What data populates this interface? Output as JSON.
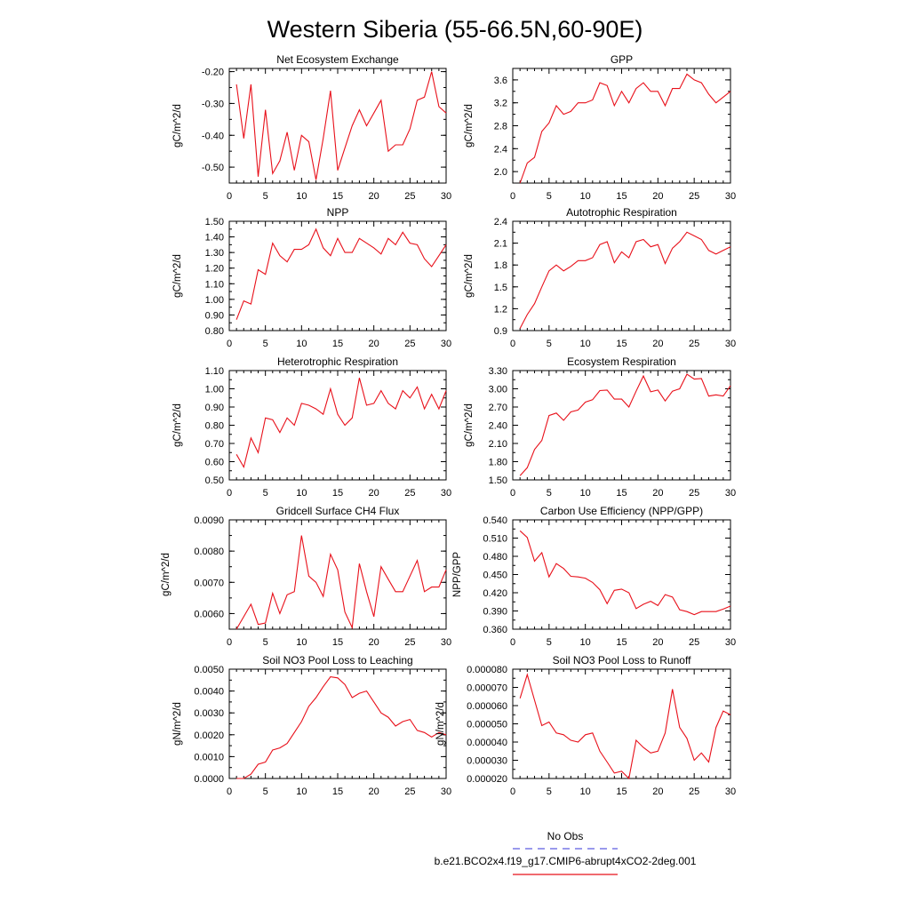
{
  "figure": {
    "title": "Western Siberia (55-66.5N,60-90E)",
    "line_color": "#e8101a",
    "obs_color": "#5c5ce0",
    "legend": {
      "obs_label": "No Obs",
      "model_label": "b.e21.BCO2x4.f19_g17.CMIP6-abrupt4xCO2-2deg.001"
    }
  },
  "chart_data": [
    {
      "type": "line",
      "title": "Net Ecosystem Exchange",
      "ylabel": "gC/m^2/d",
      "xlim": [
        0,
        30
      ],
      "ylim": [
        -0.55,
        -0.19
      ],
      "xticks": [
        0,
        5,
        10,
        15,
        20,
        25,
        30
      ],
      "yticks": [
        -0.5,
        -0.4,
        -0.3,
        -0.2
      ],
      "ytick_labels": [
        "-0.50",
        "-0.40",
        "-0.30",
        "-0.20"
      ],
      "x": [
        1,
        2,
        3,
        4,
        5,
        6,
        7,
        8,
        9,
        10,
        11,
        12,
        13,
        14,
        15,
        16,
        17,
        18,
        19,
        20,
        21,
        22,
        23,
        24,
        25,
        26,
        27,
        28,
        29,
        30
      ],
      "y": [
        -0.24,
        -0.41,
        -0.24,
        -0.53,
        -0.32,
        -0.52,
        -0.48,
        -0.39,
        -0.51,
        -0.4,
        -0.42,
        -0.54,
        -0.41,
        -0.26,
        -0.51,
        -0.44,
        -0.37,
        -0.32,
        -0.37,
        -0.33,
        -0.29,
        -0.45,
        -0.43,
        -0.43,
        -0.38,
        -0.29,
        -0.28,
        -0.2,
        -0.31,
        -0.33
      ]
    },
    {
      "type": "line",
      "title": "GPP",
      "ylabel": "gC/m^2/d",
      "xlim": [
        0,
        30
      ],
      "ylim": [
        1.8,
        3.8
      ],
      "xticks": [
        0,
        5,
        10,
        15,
        20,
        25,
        30
      ],
      "yticks": [
        2.0,
        2.4,
        2.8,
        3.2,
        3.6
      ],
      "ytick_labels": [
        "2.0",
        "2.4",
        "2.8",
        "3.2",
        "3.6"
      ],
      "x": [
        1,
        2,
        3,
        4,
        5,
        6,
        7,
        8,
        9,
        10,
        11,
        12,
        13,
        14,
        15,
        16,
        17,
        18,
        19,
        20,
        21,
        22,
        23,
        24,
        25,
        26,
        27,
        28,
        29,
        30
      ],
      "y": [
        1.8,
        2.15,
        2.25,
        2.7,
        2.85,
        3.15,
        3.0,
        3.05,
        3.2,
        3.2,
        3.25,
        3.55,
        3.5,
        3.15,
        3.4,
        3.2,
        3.45,
        3.55,
        3.4,
        3.4,
        3.15,
        3.45,
        3.45,
        3.7,
        3.6,
        3.55,
        3.35,
        3.2,
        3.3,
        3.4
      ]
    },
    {
      "type": "line",
      "title": "NPP",
      "ylabel": "gC/m^2/d",
      "xlim": [
        0,
        30
      ],
      "ylim": [
        0.8,
        1.5
      ],
      "xticks": [
        0,
        5,
        10,
        15,
        20,
        25,
        30
      ],
      "yticks": [
        0.8,
        0.9,
        1.0,
        1.1,
        1.2,
        1.3,
        1.4,
        1.5
      ],
      "ytick_labels": [
        "0.80",
        "0.90",
        "1.00",
        "1.10",
        "1.20",
        "1.30",
        "1.40",
        "1.50"
      ],
      "x": [
        1,
        2,
        3,
        4,
        5,
        6,
        7,
        8,
        9,
        10,
        11,
        12,
        13,
        14,
        15,
        16,
        17,
        18,
        19,
        20,
        21,
        22,
        23,
        24,
        25,
        26,
        27,
        28,
        29,
        30
      ],
      "y": [
        0.87,
        0.99,
        0.97,
        1.19,
        1.16,
        1.36,
        1.28,
        1.24,
        1.32,
        1.32,
        1.35,
        1.45,
        1.33,
        1.28,
        1.39,
        1.3,
        1.3,
        1.39,
        1.36,
        1.33,
        1.29,
        1.39,
        1.35,
        1.43,
        1.36,
        1.35,
        1.26,
        1.21,
        1.28,
        1.35
      ]
    },
    {
      "type": "line",
      "title": "Autotrophic Respiration",
      "ylabel": "gC/m^2/d",
      "xlim": [
        0,
        30
      ],
      "ylim": [
        0.9,
        2.4
      ],
      "xticks": [
        0,
        5,
        10,
        15,
        20,
        25,
        30
      ],
      "yticks": [
        0.9,
        1.2,
        1.5,
        1.8,
        2.1,
        2.4
      ],
      "ytick_labels": [
        "0.9",
        "1.2",
        "1.5",
        "1.8",
        "2.1",
        "2.4"
      ],
      "x": [
        1,
        2,
        3,
        4,
        5,
        6,
        7,
        8,
        9,
        10,
        11,
        12,
        13,
        14,
        15,
        16,
        17,
        18,
        19,
        20,
        21,
        22,
        23,
        24,
        25,
        26,
        27,
        28,
        29,
        30
      ],
      "y": [
        0.93,
        1.12,
        1.27,
        1.5,
        1.72,
        1.8,
        1.72,
        1.78,
        1.86,
        1.86,
        1.9,
        2.08,
        2.12,
        1.83,
        1.98,
        1.9,
        2.12,
        2.15,
        2.05,
        2.08,
        1.82,
        2.03,
        2.12,
        2.25,
        2.2,
        2.15,
        2.0,
        1.95,
        2.0,
        2.05
      ]
    },
    {
      "type": "line",
      "title": "Heterotrophic Respiration",
      "ylabel": "gC/m^2/d",
      "xlim": [
        0,
        30
      ],
      "ylim": [
        0.5,
        1.1
      ],
      "xticks": [
        0,
        5,
        10,
        15,
        20,
        25,
        30
      ],
      "yticks": [
        0.5,
        0.6,
        0.7,
        0.8,
        0.9,
        1.0,
        1.1
      ],
      "ytick_labels": [
        "0.50",
        "0.60",
        "0.70",
        "0.80",
        "0.90",
        "1.00",
        "1.10"
      ],
      "x": [
        1,
        2,
        3,
        4,
        5,
        6,
        7,
        8,
        9,
        10,
        11,
        12,
        13,
        14,
        15,
        16,
        17,
        18,
        19,
        20,
        21,
        22,
        23,
        24,
        25,
        26,
        27,
        28,
        29,
        30
      ],
      "y": [
        0.64,
        0.57,
        0.73,
        0.65,
        0.84,
        0.83,
        0.76,
        0.84,
        0.8,
        0.92,
        0.91,
        0.89,
        0.86,
        1.0,
        0.86,
        0.8,
        0.84,
        1.06,
        0.91,
        0.92,
        0.99,
        0.92,
        0.89,
        0.99,
        0.95,
        1.01,
        0.89,
        0.97,
        0.89,
        0.99
      ]
    },
    {
      "type": "line",
      "title": "Ecosystem Respiration",
      "ylabel": "gC/m^2/d",
      "xlim": [
        0,
        30
      ],
      "ylim": [
        1.5,
        3.3
      ],
      "xticks": [
        0,
        5,
        10,
        15,
        20,
        25,
        30
      ],
      "yticks": [
        1.5,
        1.8,
        2.1,
        2.4,
        2.7,
        3.0,
        3.3
      ],
      "ytick_labels": [
        "1.50",
        "1.80",
        "2.10",
        "2.40",
        "2.70",
        "3.00",
        "3.30"
      ],
      "x": [
        1,
        2,
        3,
        4,
        5,
        6,
        7,
        8,
        9,
        10,
        11,
        12,
        13,
        14,
        15,
        16,
        17,
        18,
        19,
        20,
        21,
        22,
        23,
        24,
        25,
        26,
        27,
        28,
        29,
        30
      ],
      "y": [
        1.57,
        1.7,
        2.0,
        2.15,
        2.56,
        2.6,
        2.48,
        2.62,
        2.65,
        2.78,
        2.82,
        2.97,
        2.98,
        2.83,
        2.83,
        2.7,
        2.96,
        3.21,
        2.95,
        2.98,
        2.8,
        2.96,
        3.0,
        3.24,
        3.16,
        3.17,
        2.88,
        2.9,
        2.88,
        3.05
      ]
    },
    {
      "type": "line",
      "title": "Gridcell Surface CH4 Flux",
      "ylabel": "gC/m^2/d",
      "xlim": [
        0,
        30
      ],
      "ylim": [
        0.0055,
        0.009
      ],
      "xticks": [
        0,
        5,
        10,
        15,
        20,
        25,
        30
      ],
      "yticks": [
        0.006,
        0.007,
        0.008,
        0.009
      ],
      "ytick_labels": [
        "0.0060",
        "0.0070",
        "0.0080",
        "0.0090"
      ],
      "x": [
        1,
        2,
        3,
        4,
        5,
        6,
        7,
        8,
        9,
        10,
        11,
        12,
        13,
        14,
        15,
        16,
        17,
        18,
        19,
        20,
        21,
        22,
        23,
        24,
        25,
        26,
        27,
        28,
        29,
        30
      ],
      "y": [
        0.0055,
        0.0059,
        0.0063,
        0.00565,
        0.0057,
        0.00665,
        0.006,
        0.0066,
        0.0067,
        0.0085,
        0.0072,
        0.007,
        0.00655,
        0.0079,
        0.0074,
        0.00605,
        0.00555,
        0.0076,
        0.0067,
        0.0059,
        0.0075,
        0.0071,
        0.0067,
        0.0067,
        0.0072,
        0.0077,
        0.0067,
        0.00685,
        0.00685,
        0.0074
      ]
    },
    {
      "type": "line",
      "title": "Carbon Use Efficiency (NPP/GPP)",
      "ylabel": "NPP/GPP",
      "xlim": [
        0,
        30
      ],
      "ylim": [
        0.36,
        0.54
      ],
      "xticks": [
        0,
        5,
        10,
        15,
        20,
        25,
        30
      ],
      "yticks": [
        0.36,
        0.39,
        0.42,
        0.45,
        0.48,
        0.51,
        0.54
      ],
      "ytick_labels": [
        "0.360",
        "0.390",
        "0.420",
        "0.450",
        "0.480",
        "0.510",
        "0.540"
      ],
      "x": [
        1,
        2,
        3,
        4,
        5,
        6,
        7,
        8,
        9,
        10,
        11,
        12,
        13,
        14,
        15,
        16,
        17,
        18,
        19,
        20,
        21,
        22,
        23,
        24,
        25,
        26,
        27,
        28,
        29,
        30
      ],
      "y": [
        0.522,
        0.511,
        0.472,
        0.486,
        0.446,
        0.468,
        0.46,
        0.447,
        0.446,
        0.444,
        0.437,
        0.425,
        0.402,
        0.424,
        0.426,
        0.42,
        0.394,
        0.401,
        0.406,
        0.399,
        0.417,
        0.413,
        0.392,
        0.389,
        0.384,
        0.389,
        0.389,
        0.389,
        0.393,
        0.398
      ]
    },
    {
      "type": "line",
      "title": "Soil NO3 Pool Loss to Leaching",
      "ylabel": "gN/m^2/d",
      "xlim": [
        0,
        30
      ],
      "ylim": [
        0,
        0.005
      ],
      "xticks": [
        0,
        5,
        10,
        15,
        20,
        25,
        30
      ],
      "yticks": [
        0,
        0.001,
        0.002,
        0.003,
        0.004,
        0.005
      ],
      "ytick_labels": [
        "0.0000",
        "0.0010",
        "0.0020",
        "0.0030",
        "0.0040",
        "0.0050"
      ],
      "x": [
        1,
        2,
        3,
        4,
        5,
        6,
        7,
        8,
        9,
        10,
        11,
        12,
        13,
        14,
        15,
        16,
        17,
        18,
        19,
        20,
        21,
        22,
        23,
        24,
        25,
        26,
        27,
        28,
        29,
        30
      ],
      "y": [
        0.0,
        0.0,
        0.0002,
        0.00065,
        0.00075,
        0.0013,
        0.0014,
        0.0016,
        0.0021,
        0.0026,
        0.0033,
        0.0037,
        0.0042,
        0.00465,
        0.0046,
        0.0043,
        0.0037,
        0.0039,
        0.004,
        0.0035,
        0.003,
        0.0028,
        0.0024,
        0.0026,
        0.0027,
        0.0022,
        0.0021,
        0.0019,
        0.0021,
        0.002
      ]
    },
    {
      "type": "line",
      "title": "Soil NO3 Pool Loss to Runoff",
      "ylabel": "gN/m^2/d",
      "xlim": [
        0,
        30
      ],
      "ylim": [
        2e-05,
        8e-05
      ],
      "xticks": [
        0,
        5,
        10,
        15,
        20,
        25,
        30
      ],
      "yticks": [
        2e-05,
        3e-05,
        4e-05,
        5e-05,
        6e-05,
        7e-05,
        8e-05
      ],
      "ytick_labels": [
        "0.000020",
        "0.000030",
        "0.000040",
        "0.000050",
        "0.000060",
        "0.000070",
        "0.000080"
      ],
      "x": [
        1,
        2,
        3,
        4,
        5,
        6,
        7,
        8,
        9,
        10,
        11,
        12,
        13,
        14,
        15,
        16,
        17,
        18,
        19,
        20,
        21,
        22,
        23,
        24,
        25,
        26,
        27,
        28,
        29,
        30
      ],
      "y": [
        6.4e-05,
        7.7e-05,
        6.3e-05,
        4.9e-05,
        5.1e-05,
        4.5e-05,
        4.4e-05,
        4.1e-05,
        4e-05,
        4.4e-05,
        4.5e-05,
        3.5e-05,
        2.9e-05,
        2.3e-05,
        2.4e-05,
        2e-05,
        4.1e-05,
        3.7e-05,
        3.4e-05,
        3.5e-05,
        4.5e-05,
        6.9e-05,
        4.8e-05,
        4.2e-05,
        3e-05,
        3.4e-05,
        2.9e-05,
        4.8e-05,
        5.7e-05,
        5.5e-05
      ]
    }
  ]
}
